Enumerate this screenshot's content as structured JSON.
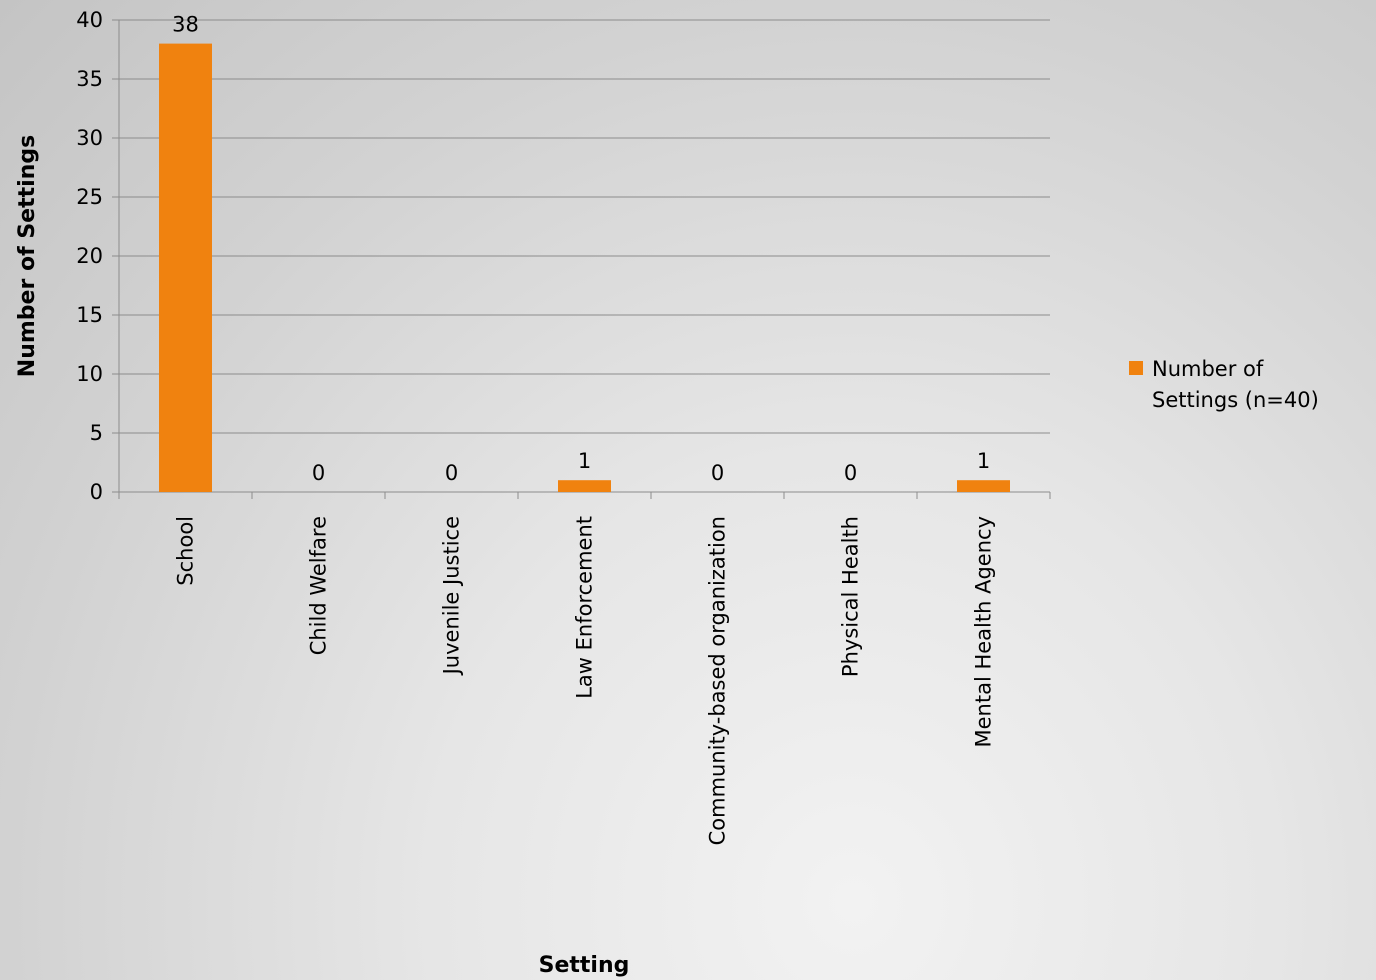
{
  "chart_data": {
    "type": "bar",
    "categories": [
      "School",
      "Child Welfare",
      "Juvenile Justice",
      "Law Enforcement",
      "Community-based organization",
      "Physical Health",
      "Mental Health Agency"
    ],
    "series": [
      {
        "name": "Number of Settings (n=40)",
        "values": [
          38,
          0,
          0,
          1,
          0,
          0,
          1
        ],
        "color": "#f0820f"
      }
    ],
    "data_labels": [
      "38",
      "0",
      "0",
      "1",
      "0",
      "0",
      "1"
    ],
    "y_ticks": [
      0,
      5,
      10,
      15,
      20,
      25,
      30,
      35,
      40
    ],
    "xlabel": "Setting",
    "ylabel": "Number of Settings",
    "ylim": [
      0,
      40
    ],
    "grid": true,
    "legend": {
      "position": "right",
      "lines": [
        "Number of",
        "Settings (n=40)"
      ]
    },
    "gridline_color": "#8c8c8c"
  }
}
